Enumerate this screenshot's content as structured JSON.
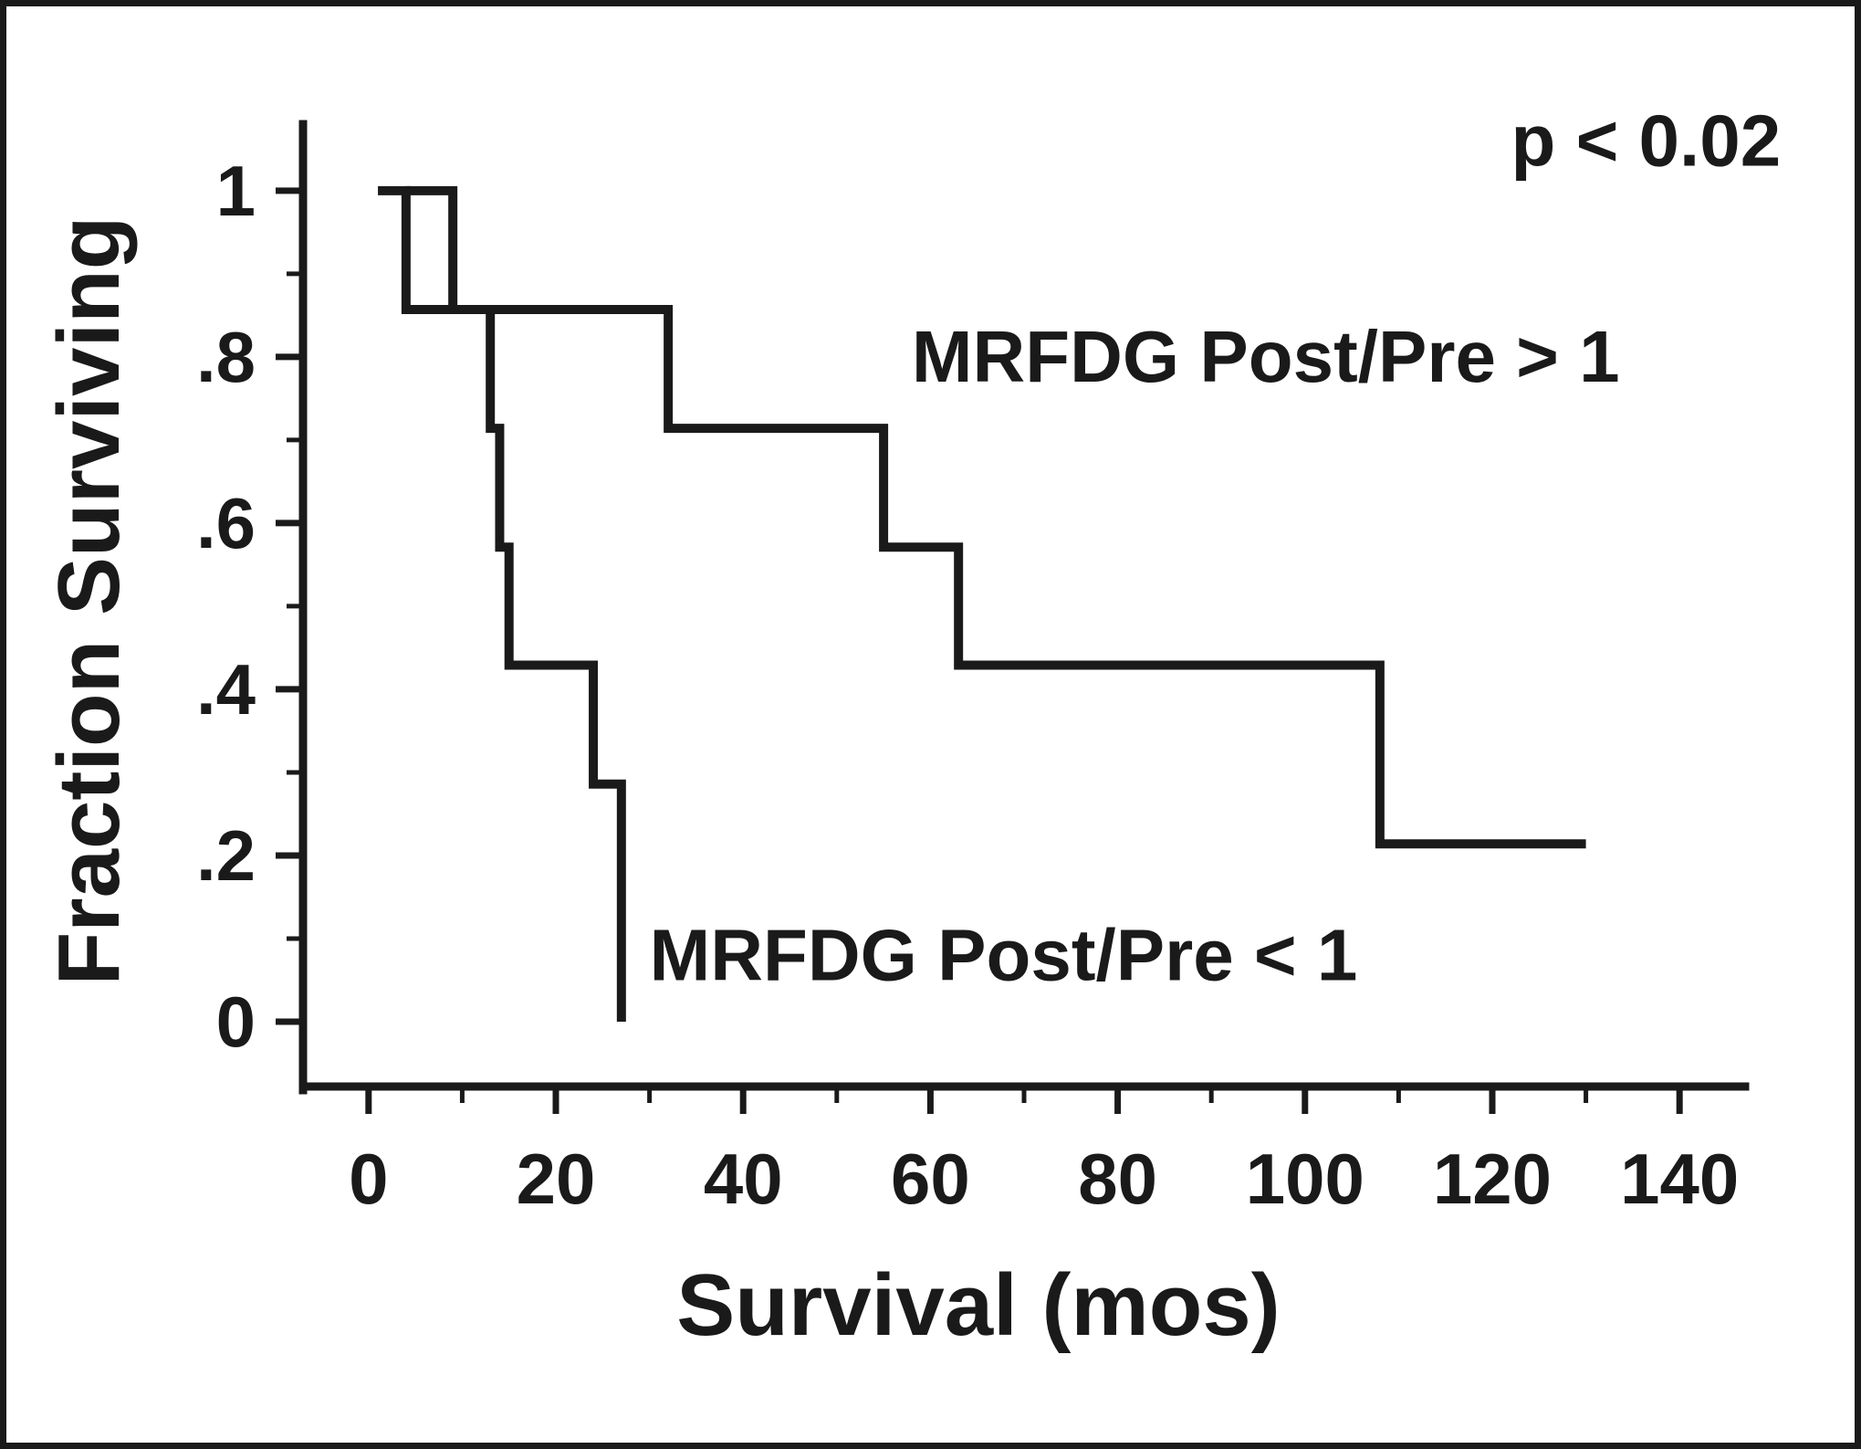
{
  "chart_data": {
    "type": "line",
    "subtype": "kaplan-meier-step",
    "xlabel": "Survival (mos)",
    "ylabel": "Fraction Surviving",
    "xlim": [
      -7,
      147
    ],
    "ylim": [
      -0.078,
      1.08
    ],
    "x_ticks": [
      0,
      20,
      40,
      60,
      80,
      100,
      120,
      140
    ],
    "x_tick_labels": [
      "0",
      "20",
      "40",
      "60",
      "80",
      "100",
      "120",
      "140"
    ],
    "y_ticks": [
      0,
      0.2,
      0.4,
      0.6,
      0.8,
      1
    ],
    "y_tick_labels": [
      "0",
      ".2",
      ".4",
      ".6",
      ".8",
      "1"
    ],
    "y_minor_ticks": [
      0.1,
      0.3,
      0.5,
      0.7,
      0.9
    ],
    "x_minor_ticks": [
      10,
      30,
      50,
      70,
      90,
      110,
      130
    ],
    "grid": false,
    "legend": "none",
    "series": [
      {
        "name": "MRFDG Post/Pre > 1",
        "color": "#1a1a1a",
        "x": [
          1,
          4,
          32,
          55,
          63,
          108,
          130
        ],
        "y": [
          1.0,
          0.857,
          0.714,
          0.571,
          0.429,
          0.214,
          0.214
        ]
      },
      {
        "name": "MRFDG Post/Pre < 1",
        "color": "#1a1a1a",
        "x": [
          4,
          9,
          13,
          14,
          15,
          24,
          27,
          27
        ],
        "y": [
          1.0,
          0.857,
          0.714,
          0.571,
          0.429,
          0.286,
          0.143,
          0.0
        ]
      }
    ],
    "annotations": [
      {
        "text": "p < 0.02",
        "x": 122,
        "y": 1.03
      },
      {
        "text": "MRFDG Post/Pre > 1",
        "x": 58,
        "y": 0.77
      },
      {
        "text": "MRFDG Post/Pre < 1",
        "x": 30,
        "y": 0.05
      }
    ]
  }
}
